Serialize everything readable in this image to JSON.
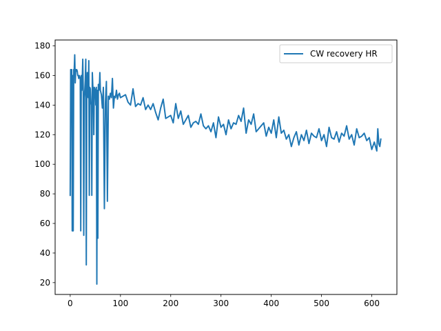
{
  "chart_data": {
    "type": "line",
    "title": "",
    "xlabel": "",
    "ylabel": "",
    "xlim": [
      -30,
      650
    ],
    "ylim": [
      12,
      184
    ],
    "xticks": [
      0,
      100,
      200,
      300,
      400,
      500,
      600
    ],
    "yticks": [
      20,
      40,
      60,
      80,
      100,
      120,
      140,
      160,
      180
    ],
    "grid": false,
    "legend_position": "top-right",
    "series": [
      {
        "name": "CW recovery HR",
        "color": "#1f77b4",
        "x": [
          0,
          1,
          2,
          3,
          4,
          5,
          6,
          7,
          8,
          9,
          10,
          11,
          12,
          13,
          14,
          15,
          16,
          17,
          18,
          19,
          20,
          21,
          22,
          23,
          24,
          25,
          26,
          27,
          28,
          29,
          30,
          31,
          32,
          33,
          34,
          35,
          36,
          37,
          38,
          39,
          40,
          41,
          42,
          43,
          44,
          45,
          46,
          47,
          48,
          49,
          50,
          51,
          52,
          53,
          54,
          55,
          56,
          57,
          58,
          59,
          60,
          62,
          64,
          66,
          68,
          70,
          72,
          74,
          76,
          78,
          80,
          82,
          84,
          86,
          88,
          90,
          92,
          94,
          96,
          98,
          100,
          105,
          110,
          115,
          120,
          125,
          130,
          135,
          140,
          145,
          150,
          155,
          160,
          165,
          170,
          175,
          180,
          185,
          190,
          195,
          200,
          205,
          210,
          215,
          220,
          225,
          230,
          235,
          240,
          245,
          250,
          255,
          260,
          265,
          270,
          275,
          280,
          285,
          290,
          295,
          300,
          305,
          310,
          315,
          320,
          325,
          330,
          335,
          340,
          345,
          350,
          355,
          360,
          365,
          370,
          375,
          380,
          385,
          390,
          395,
          400,
          405,
          410,
          415,
          420,
          425,
          430,
          435,
          440,
          445,
          450,
          455,
          460,
          465,
          470,
          475,
          480,
          485,
          490,
          495,
          500,
          505,
          510,
          515,
          520,
          525,
          530,
          535,
          540,
          545,
          550,
          555,
          560,
          565,
          570,
          575,
          580,
          585,
          590,
          595,
          600,
          605,
          610,
          612,
          614,
          616,
          618
        ],
        "y": [
          79,
          164,
          140,
          164,
          55,
          160,
          55,
          164,
          164,
          174,
          155,
          164,
          163,
          164,
          163,
          160,
          160,
          158,
          160,
          159,
          158,
          55,
          160,
          150,
          158,
          171,
          148,
          52,
          145,
          150,
          157,
          171,
          32,
          150,
          162,
          146,
          145,
          170,
          79,
          152,
          151,
          142,
          140,
          79,
          162,
          153,
          148,
          120,
          152,
          151,
          150,
          140,
          152,
          19,
          150,
          50,
          154,
          150,
          152,
          162,
          150,
          147,
          138,
          152,
          70,
          141,
          156,
          75,
          146,
          144,
          148,
          145,
          158,
          138,
          146,
          145,
          150,
          144,
          147,
          148,
          145,
          146,
          147,
          142,
          140,
          151,
          139,
          141,
          140,
          145,
          137,
          140,
          137,
          141,
          135,
          130,
          138,
          144,
          131,
          132,
          133,
          128,
          141,
          131,
          136,
          127,
          130,
          133,
          125,
          128,
          129,
          127,
          134,
          126,
          124,
          126,
          122,
          128,
          118,
          132,
          125,
          127,
          120,
          130,
          124,
          128,
          127,
          133,
          129,
          138,
          121,
          130,
          127,
          134,
          122,
          124,
          126,
          128,
          119,
          125,
          121,
          130,
          118,
          132,
          121,
          123,
          117,
          120,
          112,
          118,
          122,
          113,
          120,
          116,
          123,
          114,
          121,
          119,
          118,
          124,
          116,
          120,
          112,
          125,
          118,
          117,
          122,
          115,
          121,
          119,
          126,
          117,
          120,
          113,
          124,
          118,
          119,
          121,
          116,
          118,
          110,
          115,
          109,
          124,
          114,
          112,
          117
        ]
      }
    ]
  }
}
